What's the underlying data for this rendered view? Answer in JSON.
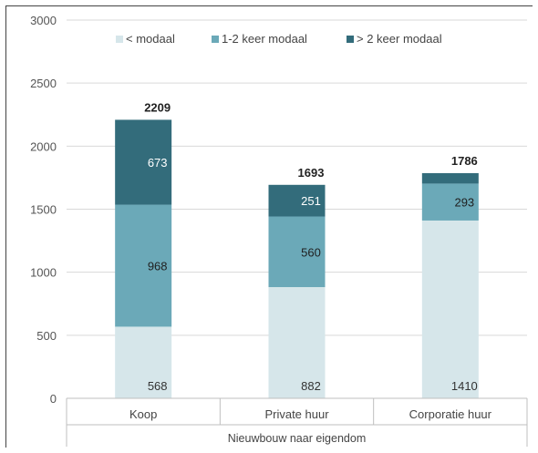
{
  "chart_data": {
    "type": "bar",
    "stacked": true,
    "categories": [
      "Koop",
      "Private huur",
      "Corporatie huur"
    ],
    "series": [
      {
        "name": "< modaal",
        "values": [
          568,
          882,
          1410
        ],
        "color": "#d6e6ea"
      },
      {
        "name": "1-2 keer modaal",
        "values": [
          968,
          560,
          293
        ],
        "color": "#6ba9b8"
      },
      {
        "name": "> 2 keer modaal",
        "values": [
          673,
          251,
          83
        ],
        "color": "#336c7b"
      }
    ],
    "totals": [
      2209,
      1693,
      1786
    ],
    "segment_labels": [
      [
        "568",
        "882",
        "1410"
      ],
      [
        "968",
        "560",
        "293"
      ],
      [
        "673",
        "251",
        ""
      ]
    ],
    "ylim": [
      0,
      3000
    ],
    "yticks": [
      0,
      500,
      1000,
      1500,
      2000,
      2500,
      3000
    ],
    "xlabel": "Nieuwbouw naar eigendom",
    "ylabel": "",
    "legend_position": "top-right",
    "grid": true
  }
}
